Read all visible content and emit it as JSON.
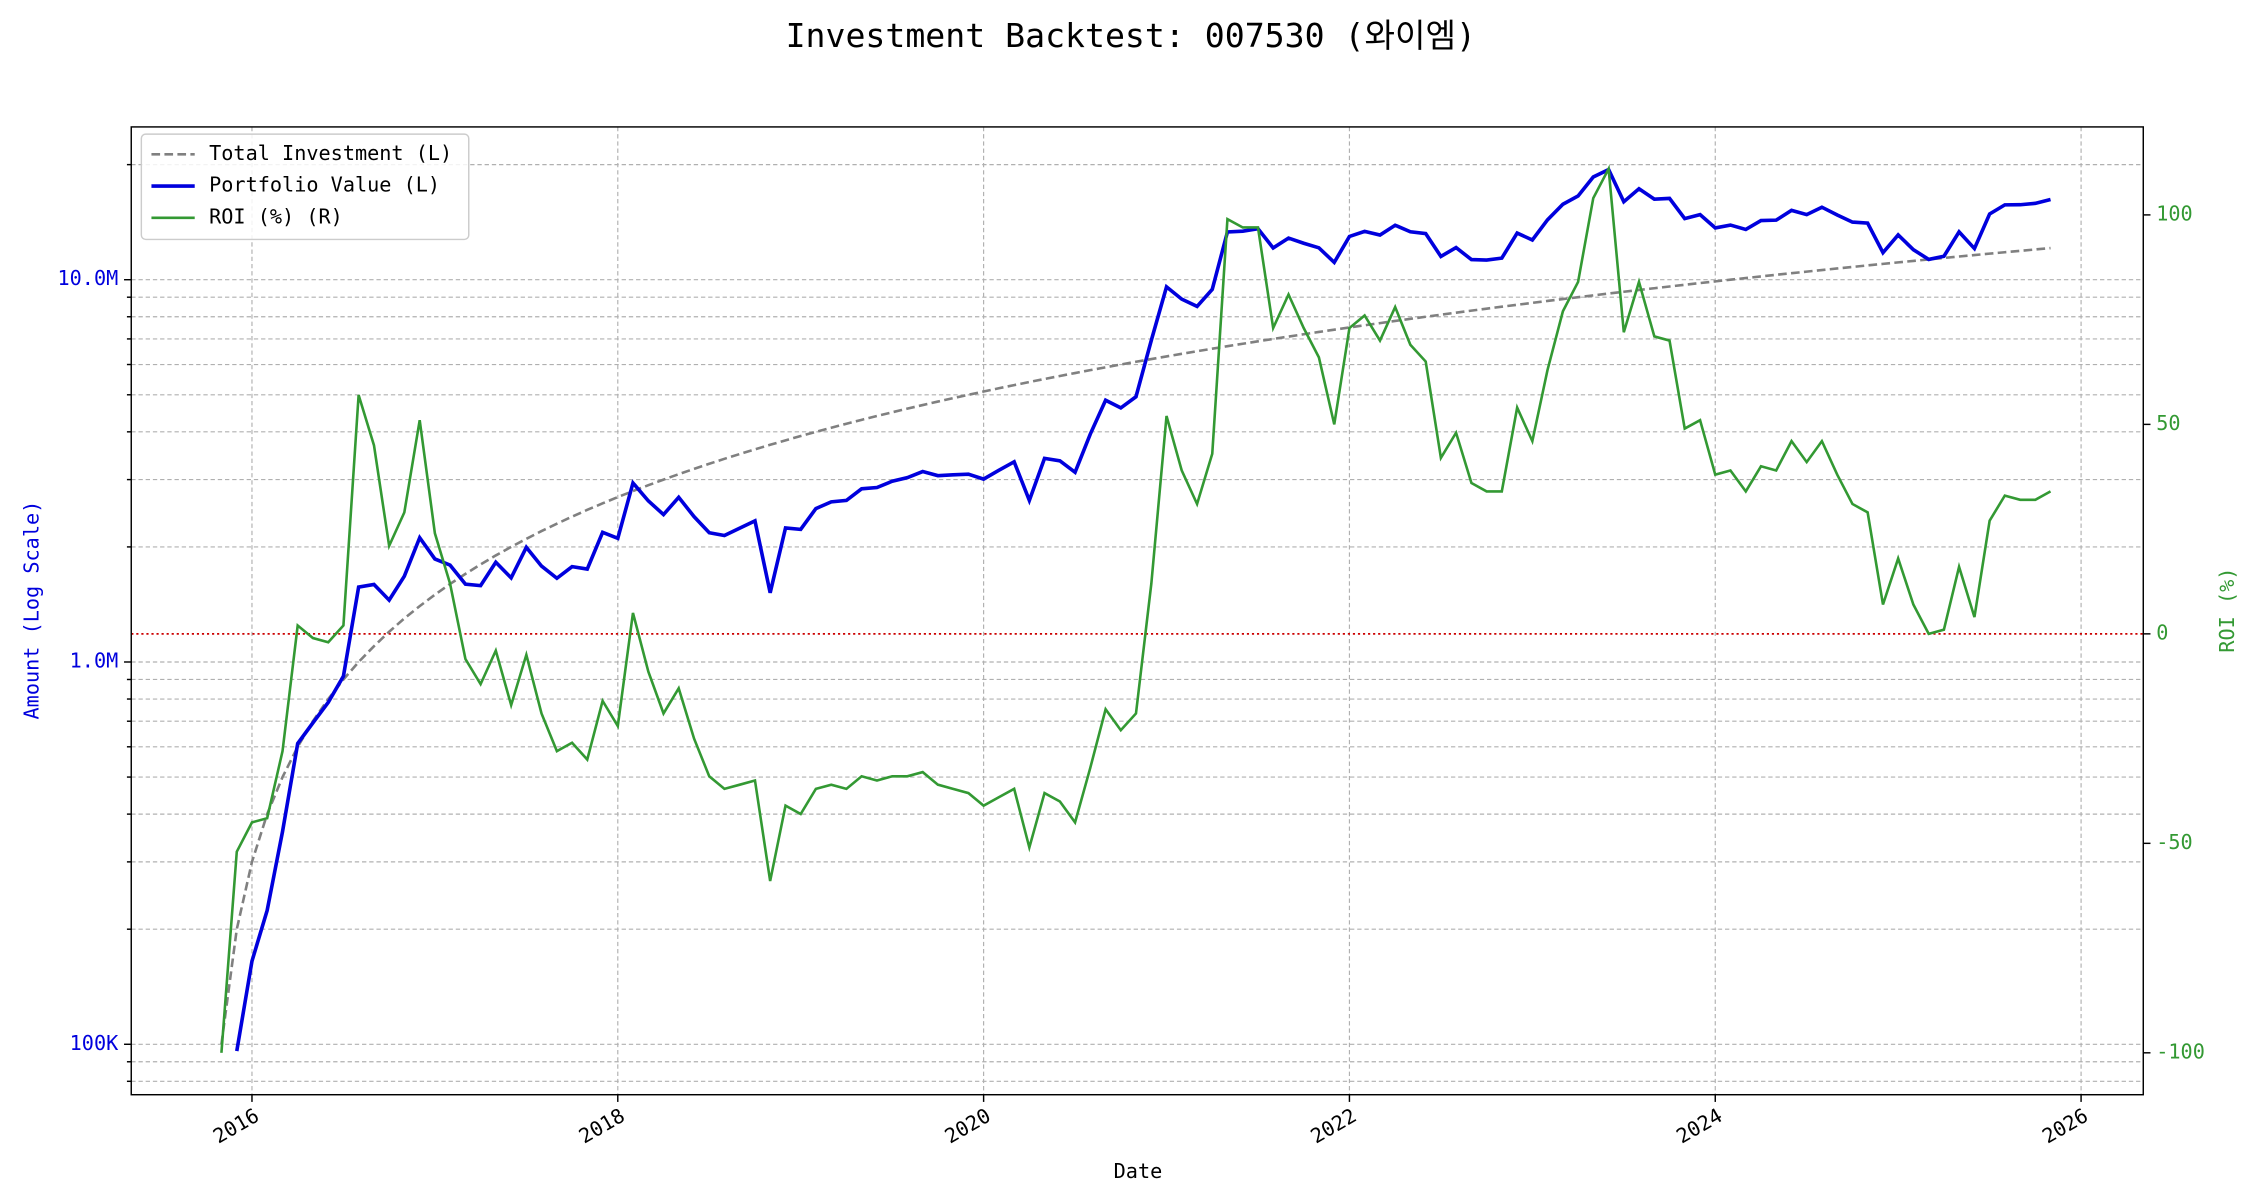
{
  "chart_data": {
    "type": "line",
    "title": "Investment Backtest: 007530 (와이엠)",
    "xlabel": "Date",
    "ylabel": "Amount (Log Scale)",
    "y2label": "ROI (%)",
    "ylog": true,
    "grid": true,
    "legend": "upper-left",
    "xlim": [
      2015.34,
      2026.34
    ],
    "xticks": [
      2016,
      2018,
      2020,
      2022,
      2024,
      2026
    ],
    "ylim": [
      73800,
      25100000
    ],
    "yticks": [
      {
        "value": 100000,
        "label": "100K"
      },
      {
        "value": 1000000,
        "label": "1.0M"
      },
      {
        "value": 10000000,
        "label": "10.0M"
      }
    ],
    "yminorticks": [
      80000,
      90000,
      200000,
      300000,
      400000,
      500000,
      600000,
      700000,
      800000,
      900000,
      2000000,
      3000000,
      4000000,
      5000000,
      6000000,
      7000000,
      8000000,
      9000000,
      20000000
    ],
    "y2lim": [
      -110,
      121
    ],
    "y2ticks": [
      -100,
      -50,
      0,
      50,
      100
    ],
    "hline": {
      "axis": "y2",
      "value": 0,
      "color": "#cc0000"
    },
    "x": [
      2015.833,
      2015.917,
      2016.0,
      2016.083,
      2016.167,
      2016.25,
      2016.333,
      2016.417,
      2016.5,
      2016.583,
      2016.667,
      2016.75,
      2016.833,
      2016.917,
      2017.0,
      2017.083,
      2017.167,
      2017.25,
      2017.333,
      2017.417,
      2017.5,
      2017.583,
      2017.667,
      2017.75,
      2017.833,
      2017.917,
      2018.0,
      2018.083,
      2018.167,
      2018.25,
      2018.333,
      2018.417,
      2018.5,
      2018.583,
      2018.667,
      2018.75,
      2018.833,
      2018.917,
      2019.0,
      2019.083,
      2019.167,
      2019.25,
      2019.333,
      2019.417,
      2019.5,
      2019.583,
      2019.667,
      2019.75,
      2019.833,
      2019.917,
      2020.0,
      2020.083,
      2020.167,
      2020.25,
      2020.333,
      2020.417,
      2020.5,
      2020.583,
      2020.667,
      2020.75,
      2020.833,
      2020.917,
      2021.0,
      2021.083,
      2021.167,
      2021.25,
      2021.333,
      2021.417,
      2021.5,
      2021.583,
      2021.667,
      2021.75,
      2021.833,
      2021.917,
      2022.0,
      2022.083,
      2022.167,
      2022.25,
      2022.333,
      2022.417,
      2022.5,
      2022.583,
      2022.667,
      2022.75,
      2022.833,
      2022.917,
      2023.0,
      2023.083,
      2023.167,
      2023.25,
      2023.333,
      2023.417,
      2023.5,
      2023.583,
      2023.667,
      2023.75,
      2023.833,
      2023.917,
      2024.0,
      2024.083,
      2024.167,
      2024.25,
      2024.333,
      2024.417,
      2024.5,
      2024.583,
      2024.667,
      2024.75,
      2024.833,
      2024.917,
      2025.0,
      2025.083,
      2025.167,
      2025.25,
      2025.333,
      2025.417,
      2025.5,
      2025.583,
      2025.667,
      2025.75,
      2025.833
    ],
    "series": [
      {
        "name": "Total Investment (L)",
        "color": "#808080",
        "dash": "dashed",
        "values": [
          100000,
          200000,
          300000,
          400000,
          500000,
          600000,
          700000,
          800000,
          900000,
          1000000,
          1100000,
          1200000,
          1300000,
          1400000,
          1500000,
          1600000,
          1700000,
          1800000,
          1900000,
          2000000,
          2100000,
          2200000,
          2300000,
          2400000,
          2500000,
          2600000,
          2700000,
          2800000,
          2900000,
          3000000,
          3100000,
          3200000,
          3300000,
          3400000,
          3500000,
          3600000,
          3700000,
          3800000,
          3900000,
          4000000,
          4100000,
          4200000,
          4300000,
          4400000,
          4500000,
          4600000,
          4700000,
          4800000,
          4900000,
          5000000,
          5100000,
          5200000,
          5300000,
          5400000,
          5500000,
          5600000,
          5700000,
          5800000,
          5900000,
          6000000,
          6100000,
          6200000,
          6300000,
          6400000,
          6500000,
          6600000,
          6700000,
          6800000,
          6900000,
          7000000,
          7100000,
          7200000,
          7300000,
          7400000,
          7500000,
          7600000,
          7700000,
          7800000,
          7900000,
          8000000,
          8100000,
          8200000,
          8300000,
          8400000,
          8500000,
          8600000,
          8700000,
          8800000,
          8900000,
          9000000,
          9100000,
          9200000,
          9300000,
          9400000,
          9500000,
          9600000,
          9700000,
          9800000,
          9900000,
          10000000,
          10100000,
          10200000,
          10300000,
          10400000,
          10500000,
          10600000,
          10700000,
          10800000,
          10900000,
          11000000,
          11100000,
          11200000,
          11300000,
          11400000,
          11500000,
          11600000,
          11700000,
          11800000,
          11900000,
          12000000,
          12100000
        ]
      },
      {
        "name": "Portfolio Value (L)",
        "color": "#0000dd",
        "dash": "solid",
        "values": [
          0,
          96000,
          165000,
          224000,
          360000,
          612000,
          693000,
          784000,
          918000,
          1570000,
          1595000,
          1452000,
          1677000,
          2114000,
          1860000,
          1792000,
          1598000,
          1584000,
          1824000,
          1660000,
          1995000,
          1782000,
          1656000,
          1776000,
          1750000,
          2184000,
          2106000,
          2940000,
          2639000,
          2430000,
          2697000,
          2400000,
          2178000,
          2142000,
          2240000,
          2340000,
          1517000,
          2242000,
          2223000,
          2520000,
          2624000,
          2646000,
          2838000,
          2860000,
          2970000,
          3036000,
          3149000,
          3072000,
          3087000,
          3100000,
          3009000,
          3172000,
          3339000,
          2646000,
          3410000,
          3360000,
          3135000,
          3944000,
          4838000,
          4620000,
          4941000,
          6944000,
          9576000,
          8896000,
          8515000,
          9438000,
          13333000,
          13396000,
          13593000,
          12110000,
          12851000,
          12456000,
          12118000,
          11100000,
          12975000,
          13376000,
          13090000,
          13884000,
          13351000,
          13200000,
          11502000,
          12136000,
          11288000,
          11256000,
          11390000,
          13244000,
          12702000,
          14344000,
          15753000,
          16560000,
          18564000,
          19412000,
          15996000,
          17296000,
          16245000,
          16320000,
          14453000,
          14798000,
          13662000,
          13900000,
          13534000,
          14280000,
          14317000,
          15184000,
          14805000,
          15476000,
          14766000,
          14148000,
          14061000,
          11770000,
          13098000,
          11984000,
          11300000,
          11514000,
          13340000,
          12064000,
          14859000,
          15694000,
          15708000,
          15840000,
          16214000
        ]
      },
      {
        "name": "ROI (%) (R)",
        "color": "#339933",
        "dash": "solid",
        "axis": "y2",
        "values": [
          -100,
          -52,
          -45,
          -44,
          -28,
          2,
          -1,
          -2,
          2,
          57,
          45,
          21,
          29,
          51,
          24,
          12,
          -6,
          -12,
          -4,
          -17,
          -5,
          -19,
          -28,
          -26,
          -30,
          -16,
          -22,
          5,
          -9,
          -19,
          -13,
          -25,
          -34,
          -37,
          -36,
          -35,
          -59,
          -41,
          -43,
          -37,
          -36,
          -37,
          -34,
          -35,
          -34,
          -34,
          -33,
          -36,
          -37,
          -38,
          -41,
          -39,
          -37,
          -51,
          -38,
          -40,
          -45,
          -32,
          -18,
          -23,
          -19,
          12,
          52,
          39,
          31,
          43,
          99,
          97,
          97,
          73,
          81,
          73,
          66,
          50,
          73,
          76,
          70,
          78,
          69,
          65,
          42,
          48,
          36,
          34,
          34,
          54,
          46,
          63,
          77,
          84,
          104,
          111,
          72,
          84,
          71,
          70,
          49,
          51,
          38,
          39,
          34,
          40,
          39,
          46,
          41,
          46,
          38,
          31,
          29,
          7,
          18,
          7,
          0,
          1,
          16,
          4,
          27,
          33,
          32,
          32,
          34
        ]
      }
    ]
  }
}
